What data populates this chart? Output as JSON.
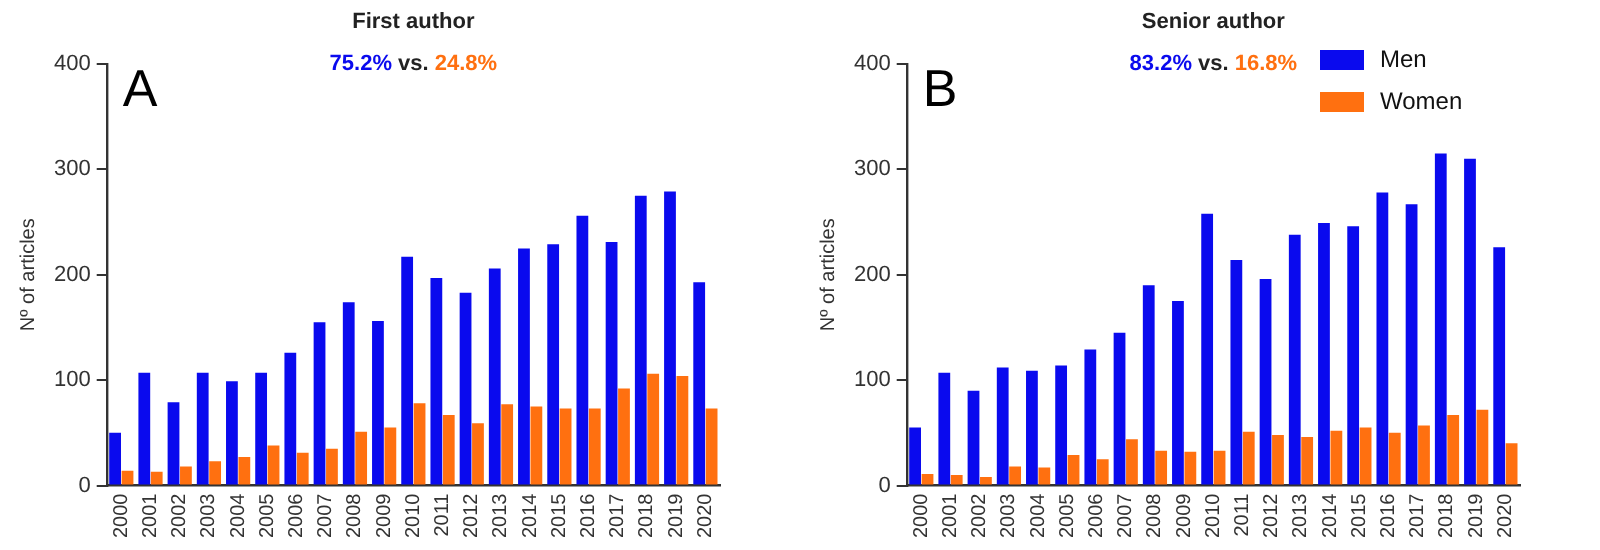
{
  "chart_data": [
    {
      "type": "bar",
      "title": "First author",
      "subtitle": "75.2% vs. 24.8%",
      "ylabel": "Nº of articles",
      "annotations": [
        "A"
      ],
      "categories": [
        "2000",
        "2001",
        "2002",
        "2003",
        "2004",
        "2005",
        "2006",
        "2007",
        "2008",
        "2009",
        "2010",
        "2011",
        "2012",
        "2013",
        "2014",
        "2015",
        "2016",
        "2017",
        "2018",
        "2019",
        "2020"
      ],
      "series": [
        {
          "color": "#0a0aee",
          "values": [
            50,
            107,
            79,
            107,
            99,
            107,
            126,
            155,
            174,
            156,
            217,
            197,
            183,
            206,
            225,
            229,
            256,
            231,
            275,
            279,
            193
          ]
        },
        {
          "color": "#ff7010",
          "values": [
            14,
            13,
            18,
            23,
            27,
            38,
            31,
            35,
            51,
            55,
            78,
            67,
            59,
            77,
            75,
            73,
            73,
            92,
            106,
            104,
            73
          ]
        }
      ],
      "ylim": [
        0,
        400
      ],
      "yticks": [
        0,
        100,
        200,
        300,
        400
      ],
      "grid": false,
      "legend": false
    },
    {
      "type": "bar",
      "title": "Senior author",
      "subtitle": "83.2% vs. 16.8%",
      "ylabel": "Nº of articles",
      "annotations": [
        "B"
      ],
      "categories": [
        "2000",
        "2001",
        "2002",
        "2003",
        "2004",
        "2005",
        "2006",
        "2007",
        "2008",
        "2009",
        "2010",
        "2011",
        "2012",
        "2013",
        "2014",
        "2015",
        "2016",
        "2017",
        "2018",
        "2019",
        "2020"
      ],
      "series": [
        {
          "name": "Men",
          "color": "#0a0aee",
          "values": [
            55,
            107,
            90,
            112,
            109,
            114,
            129,
            145,
            190,
            175,
            258,
            214,
            196,
            238,
            249,
            246,
            278,
            267,
            315,
            310,
            226
          ]
        },
        {
          "name": "Women",
          "color": "#ff7010",
          "values": [
            11,
            10,
            8,
            18,
            17,
            29,
            25,
            44,
            33,
            32,
            33,
            51,
            48,
            46,
            52,
            55,
            50,
            57,
            67,
            72,
            40
          ]
        }
      ],
      "ylim": [
        0,
        400
      ],
      "yticks": [
        0,
        100,
        200,
        300,
        400
      ],
      "grid": false,
      "legend": "top right"
    }
  ]
}
